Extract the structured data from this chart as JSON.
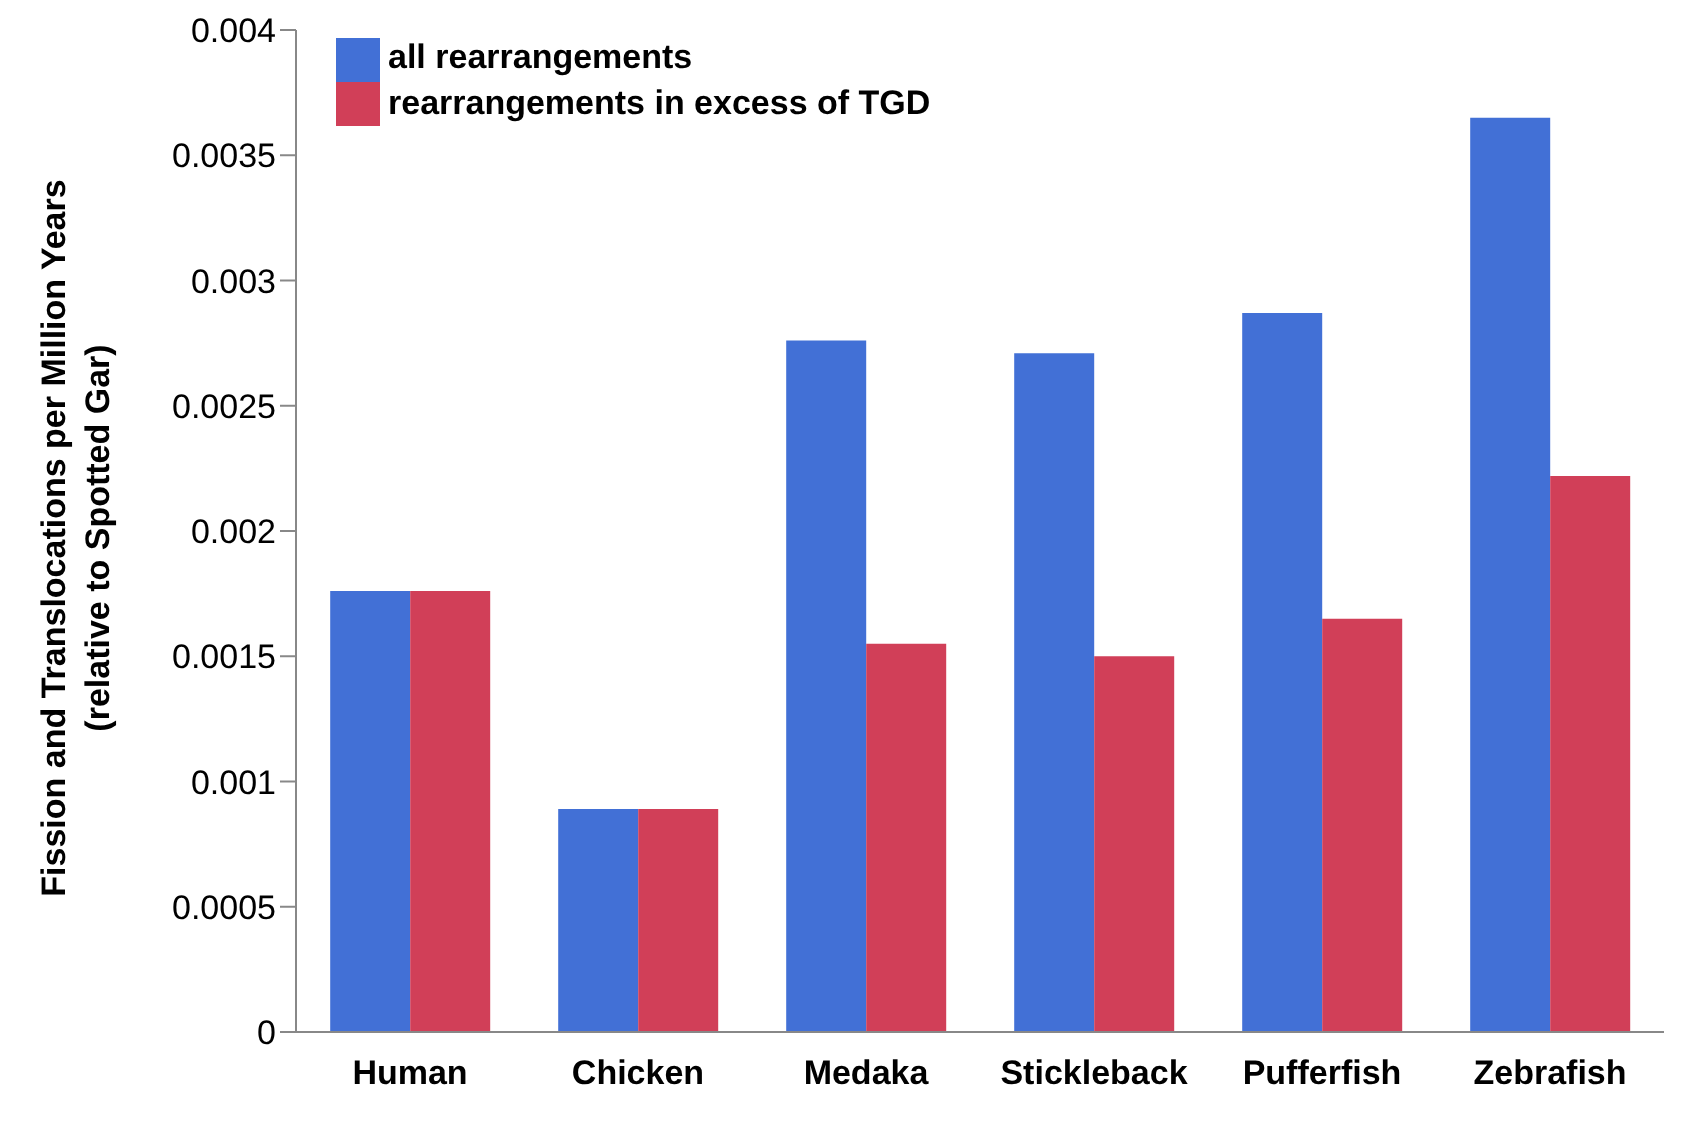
{
  "chart_data": {
    "type": "bar",
    "ylabel": "Fission and Translocations per Million Years\n(relative to Spotted Gar)",
    "categories": [
      "Human",
      "Chicken",
      "Medaka",
      "Stickleback",
      "Pufferfish",
      "Zebrafish"
    ],
    "series": [
      {
        "name": "all rearrangements",
        "color": "#4270d6",
        "values": [
          0.00176,
          0.00089,
          0.00276,
          0.00271,
          0.00287,
          0.00365
        ]
      },
      {
        "name": "rearrangements in excess of TGD",
        "color": "#d13f58",
        "values": [
          0.00176,
          0.00089,
          0.00155,
          0.0015,
          0.00165,
          0.00222
        ]
      }
    ],
    "ylim": [
      0,
      0.004
    ],
    "yticks": [
      0,
      0.0005,
      0.001,
      0.0015,
      0.002,
      0.0025,
      0.003,
      0.0035,
      0.004
    ],
    "grid": false,
    "legend": "top left"
  }
}
